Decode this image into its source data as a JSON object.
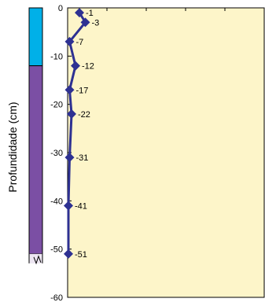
{
  "chart_data": {
    "type": "line",
    "ylabel": "Profundidade (cm)",
    "ylim": [
      -60,
      0
    ],
    "y_ticks": [
      "-60",
      "-50",
      "-40",
      "-30",
      "-20",
      "-10",
      "0"
    ],
    "grid": false,
    "points": [
      {
        "x": 0.3,
        "y": -1,
        "label": "-1"
      },
      {
        "x": 0.45,
        "y": -3,
        "label": "-3"
      },
      {
        "x": 0.05,
        "y": -7,
        "label": "-7"
      },
      {
        "x": 0.2,
        "y": -12,
        "label": "-12"
      },
      {
        "x": 0.05,
        "y": -17,
        "label": "-17"
      },
      {
        "x": 0.1,
        "y": -22,
        "label": "-22"
      },
      {
        "x": 0.05,
        "y": -31,
        "label": "-31"
      },
      {
        "x": 0.02,
        "y": -41,
        "label": "-41"
      },
      {
        "x": 0.02,
        "y": -51,
        "label": "-51"
      }
    ],
    "column_layers": [
      {
        "top": 0,
        "bottom": -12,
        "color": "#00B0E8"
      },
      {
        "top": -12,
        "bottom": -51,
        "color": "#7B4FA4"
      }
    ],
    "colors": {
      "plot_bg": "#FDF5C9",
      "line": "#2E3192"
    }
  }
}
